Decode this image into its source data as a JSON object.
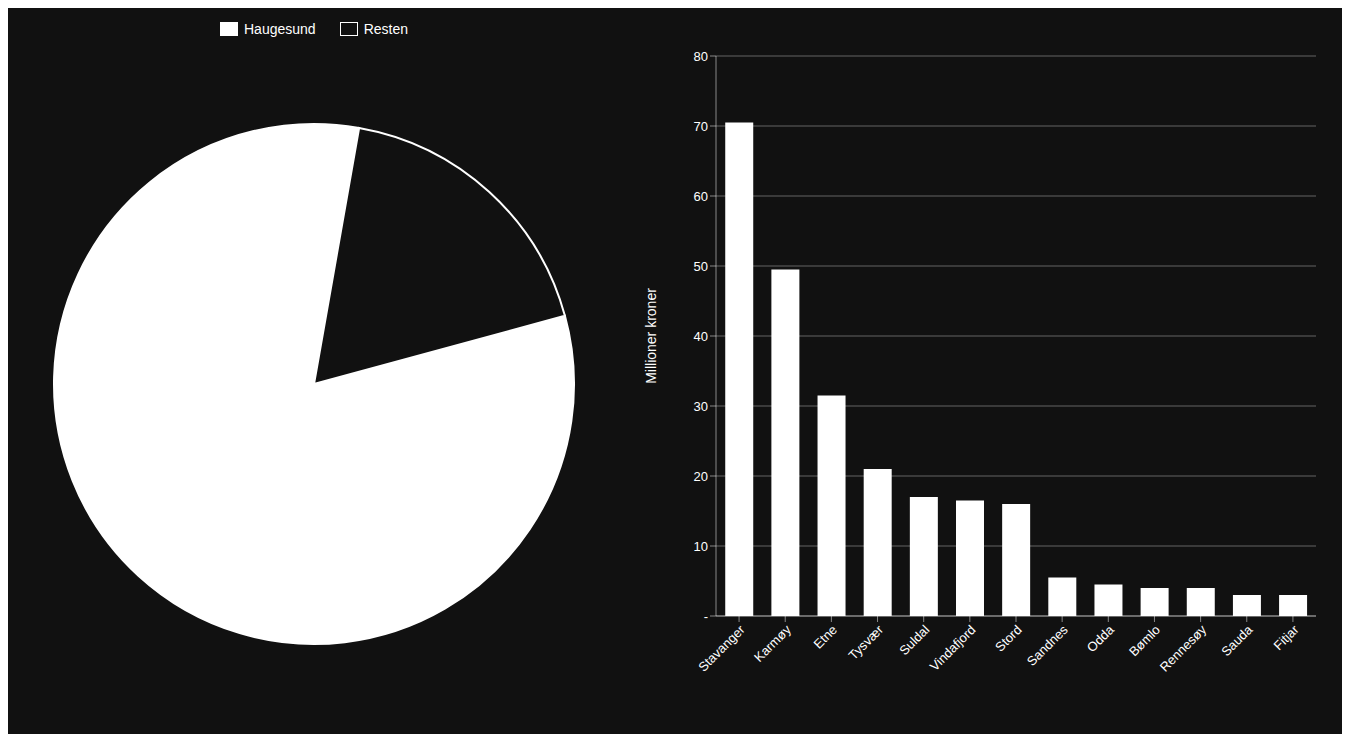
{
  "chart_data": [
    {
      "type": "pie",
      "categories": [
        "Haugesund",
        "Resten"
      ],
      "values": [
        82,
        18
      ],
      "colors": [
        "#ffffff",
        "#111111"
      ],
      "legend": "top"
    },
    {
      "type": "bar",
      "categories": [
        "Stavanger",
        "Karmøy",
        "Etne",
        "Tysvær",
        "Suldal",
        "Vindafjord",
        "Stord",
        "Sandnes",
        "Odda",
        "Bømlo",
        "Rennesøy",
        "Sauda",
        "Fitjar"
      ],
      "values": [
        70.5,
        49.5,
        31.5,
        21.0,
        17.0,
        16.5,
        16.0,
        5.5,
        4.5,
        4.0,
        4.0,
        3.0,
        3.0
      ],
      "color": "#ffffff",
      "y_label": "Millioner kroner",
      "ylim": [
        0,
        80
      ],
      "yticks": [
        {
          "value": 0,
          "label": "-"
        },
        10,
        20,
        30,
        40,
        50,
        60,
        70,
        80
      ],
      "grid": true
    }
  ]
}
